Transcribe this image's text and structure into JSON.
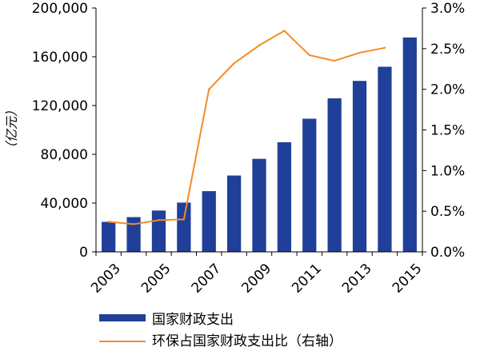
{
  "chart_data": {
    "type": "bar",
    "x": [
      "2003",
      "2004",
      "2005",
      "2006",
      "2007",
      "2008",
      "2009",
      "2010",
      "2011",
      "2012",
      "2013",
      "2014",
      "2015"
    ],
    "x_tick_labels": [
      "2003",
      "2005",
      "2007",
      "2009",
      "2011",
      "2013",
      "2015"
    ],
    "ylabel": "（亿元）",
    "ylim": [
      0,
      200000
    ],
    "y_ticks": [
      0,
      40000,
      80000,
      120000,
      160000,
      200000
    ],
    "y_tick_labels": [
      "0",
      "40,000",
      "80,000",
      "120,000",
      "160,000",
      "200,000"
    ],
    "y2lim": [
      0,
      0.03
    ],
    "y2_ticks": [
      0,
      0.005,
      0.01,
      0.015,
      0.02,
      0.025,
      0.03
    ],
    "y2_tick_labels": [
      "0.0%",
      "0.5%",
      "1.0%",
      "1.5%",
      "2.0%",
      "2.5%",
      "3.0%"
    ],
    "series": [
      {
        "name": "国家财政支出",
        "type": "bar",
        "axis": "left",
        "color": "#1f3f99",
        "values": [
          24600,
          28500,
          33900,
          40400,
          49800,
          62600,
          76300,
          89900,
          109200,
          125900,
          140200,
          151800,
          175800
        ]
      },
      {
        "name": "环保占国家财政支出比（右轴）",
        "type": "line",
        "axis": "right",
        "color": "#f28c28",
        "values": [
          0.0037,
          0.0034,
          0.0039,
          0.004,
          0.02,
          0.0232,
          0.0254,
          0.0272,
          0.0242,
          0.0235,
          0.0245,
          0.0251,
          null
        ]
      }
    ],
    "legend_position": "bottom",
    "grid": false
  }
}
